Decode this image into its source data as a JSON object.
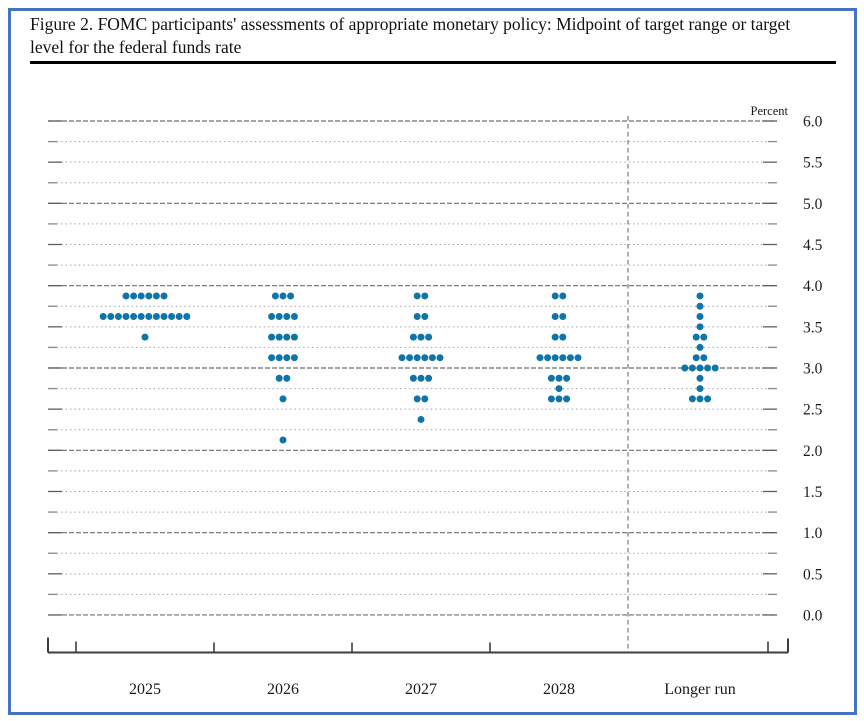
{
  "figure": {
    "caption": "Figure 2. FOMC participants' assessments of appropriate monetary policy: Midpoint of target range or target level for the federal funds rate"
  },
  "chart_data": {
    "type": "scatter",
    "subtype": "fomc-dot-plot",
    "title": "Figure 2. FOMC participants' assessments of appropriate monetary policy: Midpoint of target range or target level for the federal funds rate",
    "ylabel": "Percent",
    "ylim": [
      0.0,
      6.0
    ],
    "y_tick_labels": [
      "6.0",
      "5.5",
      "5.0",
      "4.5",
      "4.0",
      "3.5",
      "3.0",
      "2.5",
      "2.0",
      "1.5",
      "1.0",
      "0.5",
      "0.0"
    ],
    "gridline_interval": 0.25,
    "grid": true,
    "legend_position": "none",
    "categories": [
      "2025",
      "2026",
      "2027",
      "2028",
      "Longer run"
    ],
    "separator_after_category": "2028",
    "series": [
      {
        "name": "2025",
        "dots": [
          {
            "rate": 3.875,
            "count": 6
          },
          {
            "rate": 3.625,
            "count": 12
          },
          {
            "rate": 3.375,
            "count": 1
          }
        ]
      },
      {
        "name": "2026",
        "dots": [
          {
            "rate": 3.875,
            "count": 3
          },
          {
            "rate": 3.625,
            "count": 4
          },
          {
            "rate": 3.375,
            "count": 4
          },
          {
            "rate": 3.125,
            "count": 4
          },
          {
            "rate": 2.875,
            "count": 2
          },
          {
            "rate": 2.625,
            "count": 1
          },
          {
            "rate": 2.125,
            "count": 1
          }
        ]
      },
      {
        "name": "2027",
        "dots": [
          {
            "rate": 3.875,
            "count": 2
          },
          {
            "rate": 3.625,
            "count": 2
          },
          {
            "rate": 3.375,
            "count": 3
          },
          {
            "rate": 3.125,
            "count": 6
          },
          {
            "rate": 2.875,
            "count": 3
          },
          {
            "rate": 2.625,
            "count": 2
          },
          {
            "rate": 2.375,
            "count": 1
          }
        ]
      },
      {
        "name": "2028",
        "dots": [
          {
            "rate": 3.875,
            "count": 2
          },
          {
            "rate": 3.625,
            "count": 2
          },
          {
            "rate": 3.375,
            "count": 2
          },
          {
            "rate": 3.125,
            "count": 6
          },
          {
            "rate": 2.875,
            "count": 3
          },
          {
            "rate": 2.75,
            "count": 1
          },
          {
            "rate": 2.625,
            "count": 3
          }
        ]
      },
      {
        "name": "Longer run",
        "dots": [
          {
            "rate": 3.875,
            "count": 1
          },
          {
            "rate": 3.75,
            "count": 1
          },
          {
            "rate": 3.625,
            "count": 1
          },
          {
            "rate": 3.5,
            "count": 1
          },
          {
            "rate": 3.375,
            "count": 2
          },
          {
            "rate": 3.25,
            "count": 1
          },
          {
            "rate": 3.125,
            "count": 2
          },
          {
            "rate": 3.0,
            "count": 5
          },
          {
            "rate": 2.875,
            "count": 1
          },
          {
            "rate": 2.75,
            "count": 1
          },
          {
            "rate": 2.625,
            "count": 3
          }
        ]
      }
    ],
    "colors": {
      "dot": "#0f74a8",
      "frame_border": "#4472c4",
      "caption_rule": "#000000",
      "major_grid": "#6f6f6f",
      "minor_grid": "#a0a0a0",
      "axis": "#3d3d3d",
      "label_text": "#1a1a1a"
    }
  }
}
